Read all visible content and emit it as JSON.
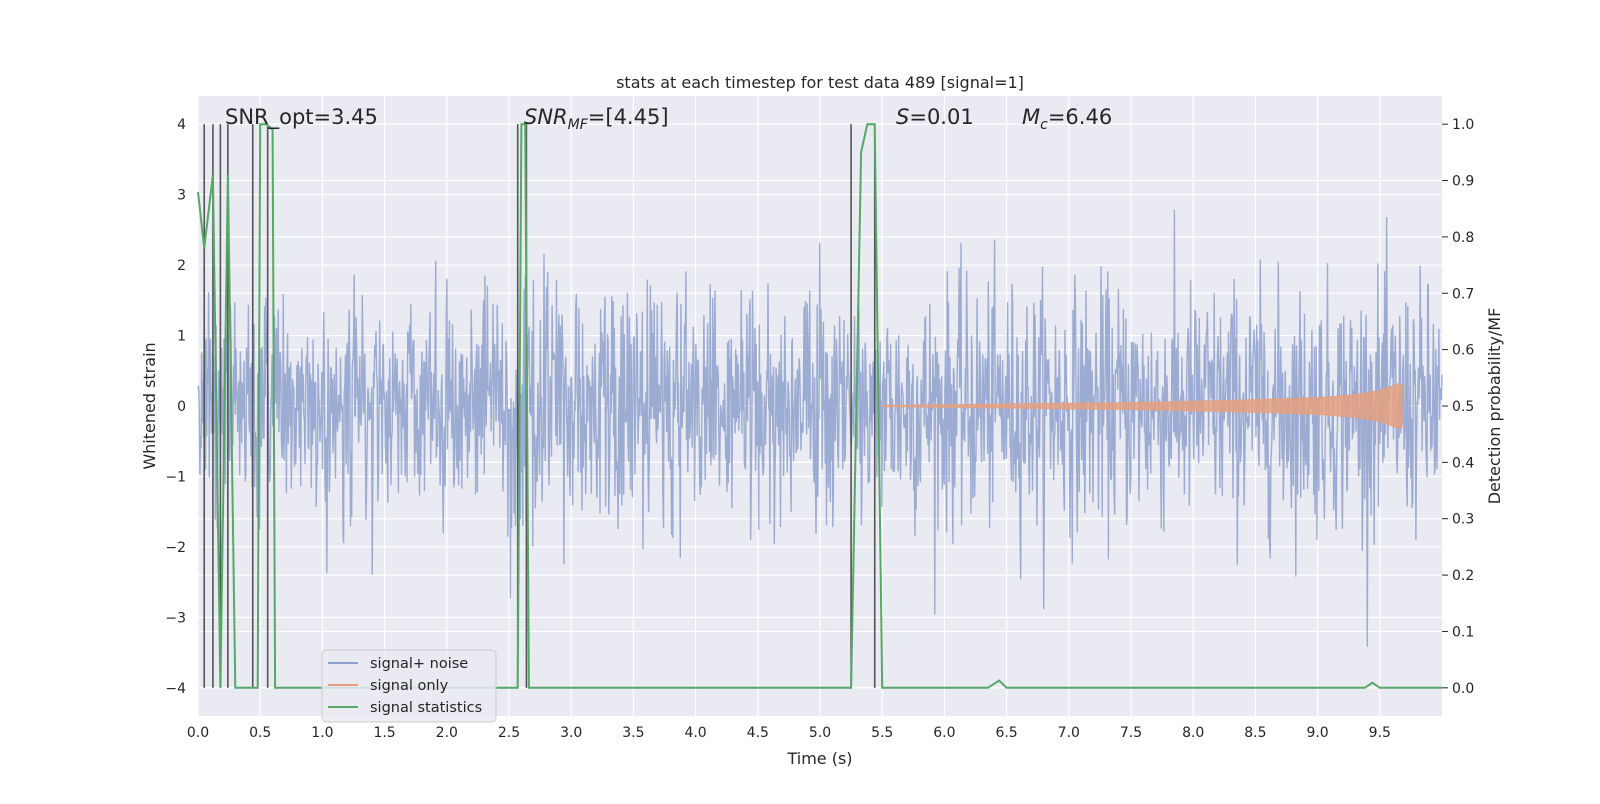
{
  "chart_data": {
    "type": "line",
    "title": "stats at each timestep for test data 489 [signal=1]",
    "xlabel": "Time (s)",
    "ylabel": "Whitened strain",
    "y2label": "Detection probability/MF",
    "xlim": [
      0.0,
      10.0
    ],
    "ylim": [
      -4.4,
      4.4
    ],
    "y2lim": [
      -0.05,
      1.05
    ],
    "xticks": [
      "0.0",
      "0.5",
      "1.0",
      "1.5",
      "2.0",
      "2.5",
      "3.0",
      "3.5",
      "4.0",
      "4.5",
      "5.0",
      "5.5",
      "6.0",
      "6.5",
      "7.0",
      "7.5",
      "8.0",
      "8.5",
      "9.0",
      "9.5"
    ],
    "xtick_values": [
      0.0,
      0.5,
      1.0,
      1.5,
      2.0,
      2.5,
      3.0,
      3.5,
      4.0,
      4.5,
      5.0,
      5.5,
      6.0,
      6.5,
      7.0,
      7.5,
      8.0,
      8.5,
      9.0,
      9.5
    ],
    "yticks": [
      "−4",
      "−3",
      "−2",
      "−1",
      "0",
      "1",
      "2",
      "3",
      "4"
    ],
    "ytick_values": [
      -4,
      -3,
      -2,
      -1,
      0,
      1,
      2,
      3,
      4
    ],
    "y2ticks": [
      "0.0",
      "0.1",
      "0.2",
      "0.3",
      "0.4",
      "0.5",
      "0.6",
      "0.7",
      "0.8",
      "0.9",
      "1.0"
    ],
    "y2tick_values": [
      0.0,
      0.1,
      0.2,
      0.3,
      0.4,
      0.5,
      0.6,
      0.7,
      0.8,
      0.9,
      1.0
    ],
    "grid": true,
    "legend_position": "lower-left",
    "annotations": {
      "snr_opt": "SNR_opt=3.45",
      "snr_mf_label": "SNR",
      "snr_mf_sub": "MF",
      "snr_mf_value": "=[4.45]",
      "s_label": "S",
      "s_value": "=0.01",
      "mc_label": "M",
      "mc_sub": "c",
      "mc_value": "=6.46"
    },
    "series": [
      {
        "name": "signal+ noise",
        "color": "#8da0cb",
        "noise_sigma": 0.85,
        "x_range": [
          0.0,
          10.0
        ],
        "samples": 2000
      },
      {
        "name": "signal only",
        "color": "#e5a07f",
        "envelope_x": [
          5.5,
          6.0,
          6.5,
          7.0,
          7.5,
          8.0,
          8.5,
          9.0,
          9.3,
          9.5,
          9.65,
          9.68
        ],
        "envelope_y": [
          0.01,
          0.02,
          0.03,
          0.04,
          0.05,
          0.07,
          0.09,
          0.12,
          0.16,
          0.22,
          0.32,
          0.3
        ]
      },
      {
        "name": "signal statistics",
        "color": "#55a868",
        "x": [
          0.0,
          0.05,
          0.12,
          0.18,
          0.24,
          0.3,
          0.36,
          0.42,
          0.48,
          0.5,
          0.55,
          0.6,
          0.62,
          1.0,
          1.5,
          2.0,
          2.5,
          2.57,
          2.6,
          2.63,
          2.66,
          2.72,
          3.0,
          4.0,
          4.4,
          5.0,
          5.25,
          5.33,
          5.38,
          5.44,
          5.5,
          5.6,
          6.0,
          6.35,
          6.44,
          6.5,
          7.0,
          8.0,
          9.0,
          9.38,
          9.44,
          9.5,
          10.0
        ],
        "y": [
          0.88,
          0.78,
          0.91,
          0.0,
          0.91,
          0.0,
          0.0,
          0.0,
          0.0,
          1.0,
          1.0,
          0.99,
          0.0,
          0.0,
          0.0,
          0.0,
          0.0,
          0.0,
          1.0,
          1.0,
          0.0,
          0.0,
          0.0,
          0.0,
          0.0,
          0.0,
          0.0,
          0.95,
          1.0,
          1.0,
          0.0,
          0.0,
          0.0,
          0.0,
          0.013,
          0.0,
          0.0,
          0.0,
          0.0,
          0.0,
          0.009,
          0.0,
          0.0
        ]
      }
    ],
    "vertical_markers": {
      "color": "#555555",
      "x": [
        0.05,
        0.12,
        0.18,
        0.24,
        0.44,
        0.56,
        2.57,
        2.64,
        5.25,
        5.44
      ]
    }
  },
  "colors": {
    "plot_bg": "#eaeaf2",
    "grid": "#ffffff",
    "text": "#262626"
  }
}
